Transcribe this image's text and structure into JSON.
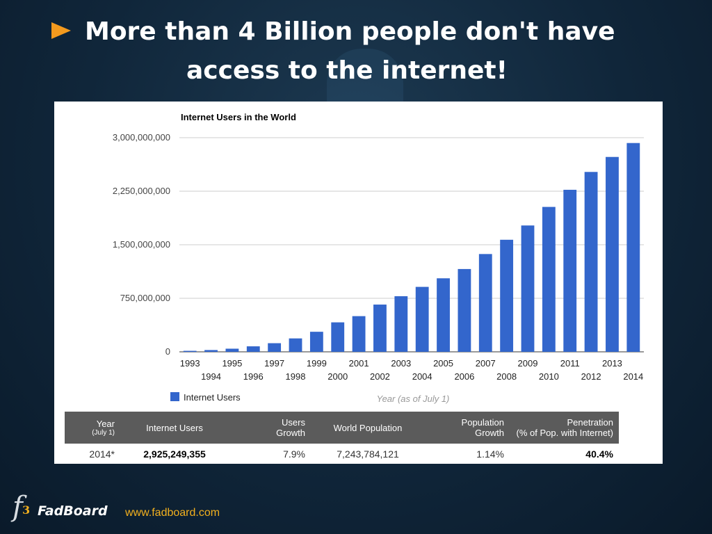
{
  "slide": {
    "title_line1": "More than 4 Billion people don't have",
    "title_line2": "access to the internet!",
    "brand": "FadBoard",
    "url": "www.fadboard.com",
    "bullet_color": "#f39a1e"
  },
  "chart_data": {
    "type": "bar",
    "title": "Internet Users in the World",
    "xlabel": "Year (as of July 1)",
    "ylabel": "",
    "ylim": [
      0,
      3000000000
    ],
    "yticks": [
      "0",
      "750,000,000",
      "1,500,000,000",
      "2,250,000,000",
      "3,000,000,000"
    ],
    "ytick_values": [
      0,
      750000000,
      1500000000,
      2250000000,
      3000000000
    ],
    "grid": true,
    "legend_position": "bottom-left",
    "bar_color": "#3366cc",
    "categories": [
      "1993",
      "1994",
      "1995",
      "1996",
      "1997",
      "1998",
      "1999",
      "2000",
      "2001",
      "2002",
      "2003",
      "2004",
      "2005",
      "2006",
      "2007",
      "2008",
      "2009",
      "2010",
      "2011",
      "2012",
      "2013",
      "2014"
    ],
    "series": [
      {
        "name": "Internet Users",
        "values": [
          14000000,
          25000000,
          44000000,
          77000000,
          121000000,
          188000000,
          281000000,
          413000000,
          500000000,
          662000000,
          779000000,
          910000000,
          1030000000,
          1160000000,
          1370000000,
          1570000000,
          1770000000,
          2030000000,
          2270000000,
          2520000000,
          2730000000,
          2925000000
        ]
      }
    ]
  },
  "table": {
    "headers": [
      {
        "line1": "Year",
        "line2": "(July 1)"
      },
      {
        "line1": "Internet Users",
        "line2": ""
      },
      {
        "line1": "Users",
        "line2": "Growth"
      },
      {
        "line1": "World Population",
        "line2": ""
      },
      {
        "line1": "Population",
        "line2": "Growth"
      },
      {
        "line1": "Penetration",
        "line2": "(% of Pop. with Internet)"
      }
    ],
    "row": [
      "2014*",
      "2,925,249,355",
      "7.9%",
      "7,243,784,121",
      "1.14%",
      "40.4%"
    ]
  }
}
